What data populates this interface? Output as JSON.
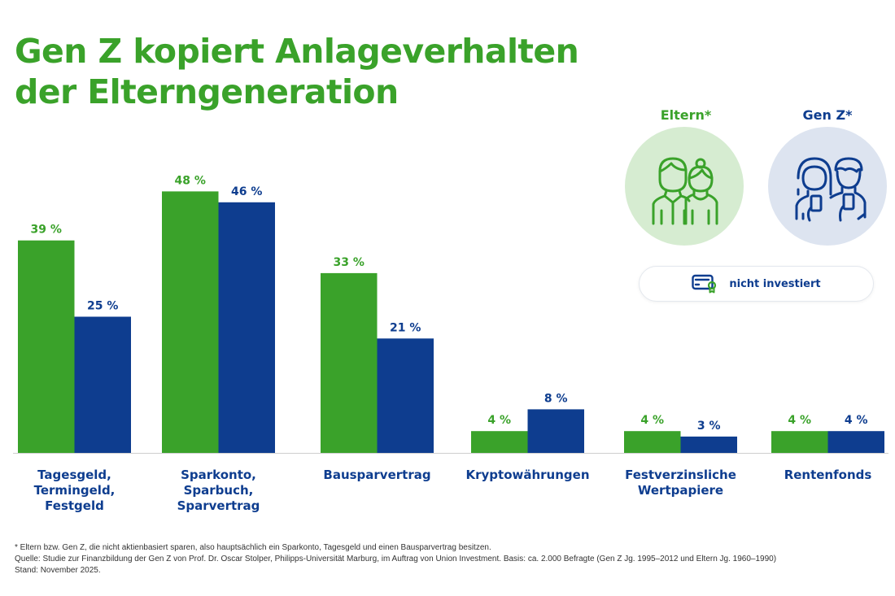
{
  "title": {
    "line1": "Gen Z kopiert Anlageverhalten",
    "line2": "der Elterngeneration"
  },
  "legend": {
    "parents_label": "Eltern*",
    "genz_label": "Gen Z*",
    "parents_icon": "parents-couple-icon",
    "genz_icon": "genz-smartphone-users-icon",
    "note_icon": "certificate-icon",
    "note_label": "nicht investiert"
  },
  "colors": {
    "parents": "#3aa22a",
    "genz": "#0e3d8f",
    "axis": "#cfcfcf"
  },
  "chart_data": {
    "type": "bar",
    "title": "Gen Z kopiert Anlageverhalten der Elterngeneration",
    "xlabel": "",
    "ylabel": "",
    "ylim": [
      0,
      50
    ],
    "grid": false,
    "legend_position": "top-right",
    "categories": [
      "Tagesgeld,\nTermingeld,\nFestgeld",
      "Sparkonto,\nSparbuch,\nSparvertrag",
      "Bausparvertrag",
      "Kryptowährungen",
      "Festverzinsliche\nWertpapiere",
      "Rentenfonds"
    ],
    "series": [
      {
        "name": "Eltern*",
        "color": "#3aa22a",
        "values": [
          39,
          48,
          33,
          4,
          4,
          4
        ],
        "labels": [
          "39 %",
          "48 %",
          "33 %",
          "4 %",
          "4 %",
          "4 %"
        ]
      },
      {
        "name": "Gen Z*",
        "color": "#0e3d8f",
        "values": [
          25,
          46,
          21,
          8,
          3,
          4
        ],
        "labels": [
          "25 %",
          "46 %",
          "21 %",
          "8 %",
          "3 %",
          "4 %"
        ]
      }
    ]
  },
  "footnotes": {
    "line1": "* Eltern bzw. Gen Z, die nicht aktienbasiert sparen, also hauptsächlich ein Sparkonto, Tagesgeld und einen Bausparvertrag besitzen.",
    "line2": "Quelle: Studie zur Finanzbildung der Gen Z von Prof. Dr. Oscar Stolper, Philipps-Universität Marburg, im Auftrag von Union Investment.  Basis: ca. 2.000 Befragte (Gen Z Jg. 1995–2012 und Eltern Jg. 1960–1990)",
    "line3": "Stand: November 2025."
  }
}
